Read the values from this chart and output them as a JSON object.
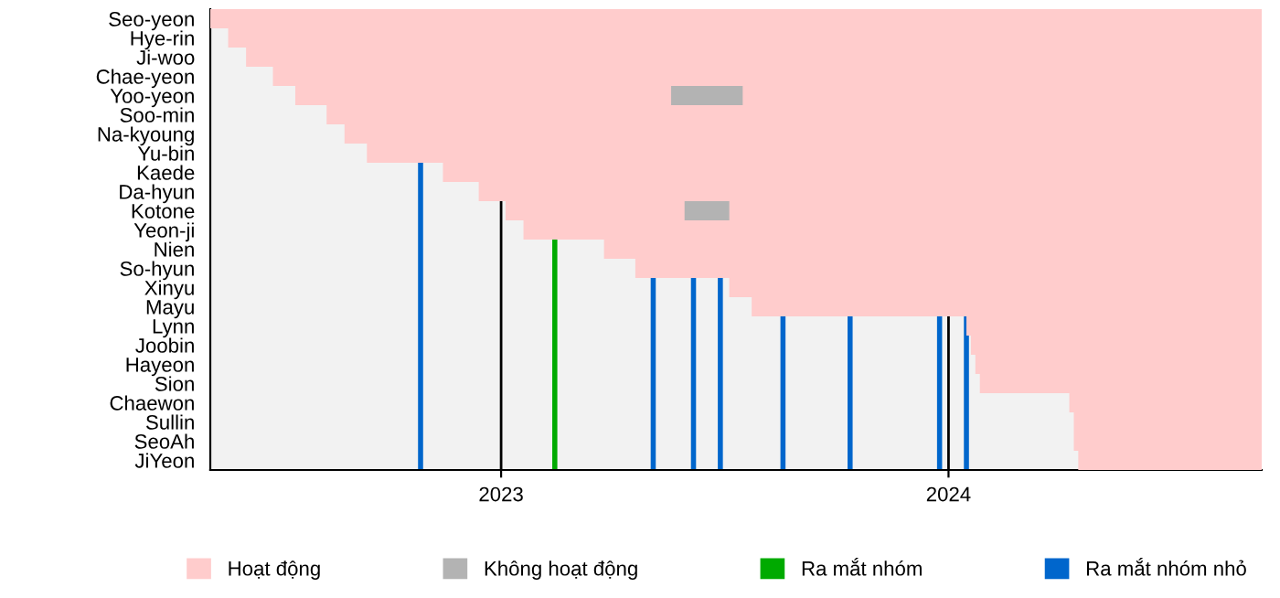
{
  "chart_data": {
    "type": "bar",
    "orientation": "horizontal",
    "categories": [
      "Seo-yeon",
      "Hye-rin",
      "Ji-woo",
      "Chae-yeon",
      "Yoo-yeon",
      "Soo-min",
      "Na-kyoung",
      "Yu-bin",
      "Kaede",
      "Da-hyun",
      "Kotone",
      "Yeon-ji",
      "Nien",
      "So-hyun",
      "Xinyu",
      "Mayu",
      "Lynn",
      "Joobin",
      "Hayeon",
      "Sion",
      "Chaewon",
      "Sullin",
      "SeoAh",
      "JiYeon"
    ],
    "series": [
      {
        "name": "Hoạt động",
        "color": "#ffcccc",
        "base": [
          2022.35,
          2022.39,
          2022.43,
          2022.49,
          2022.54,
          2022.61,
          2022.65,
          2022.7,
          2022.87,
          2022.95,
          2023.01,
          2023.05,
          2023.23,
          2023.3,
          2023.51,
          2023.56,
          2024.04,
          2024.05,
          2024.06,
          2024.07,
          2024.27,
          2024.28,
          2024.28,
          2024.29
        ],
        "values": [
          2.35,
          2.31,
          2.27,
          2.21,
          2.16,
          2.09,
          2.05,
          2.0,
          1.83,
          1.75,
          1.69,
          1.65,
          1.47,
          1.4,
          1.19,
          1.14,
          0.66,
          0.65,
          0.64,
          0.63,
          0.43,
          0.42,
          0.42,
          0.41
        ]
      },
      {
        "name": "Không hoạt động",
        "color": "#b3b3b3",
        "base": [
          null,
          null,
          null,
          null,
          2023.38,
          null,
          null,
          null,
          null,
          null,
          2023.41,
          null,
          null,
          null,
          null,
          null,
          null,
          null,
          null,
          null,
          null,
          null,
          null,
          null
        ],
        "values": [
          null,
          null,
          null,
          null,
          0.16,
          null,
          null,
          null,
          null,
          null,
          0.1,
          null,
          null,
          null,
          null,
          null,
          null,
          null,
          null,
          null,
          null,
          null,
          null,
          null
        ]
      }
    ],
    "xlim": [
      2022.35,
      2024.7
    ],
    "xticks": [
      2023,
      2024
    ],
    "grid": "x",
    "ref_lines": [
      {
        "axis": "x",
        "value": 2022.82,
        "label": "Ra mắt nhóm nhỏ",
        "color": "#0066cc"
      },
      {
        "axis": "x",
        "value": 2023.12,
        "label": "Ra mắt nhóm",
        "color": "#00aa00"
      },
      {
        "axis": "x",
        "value": 2023.34,
        "color": "#0066cc"
      },
      {
        "axis": "x",
        "value": 2023.43,
        "color": "#0066cc"
      },
      {
        "axis": "x",
        "value": 2023.49,
        "color": "#0066cc"
      },
      {
        "axis": "x",
        "value": 2023.63,
        "color": "#0066cc"
      },
      {
        "axis": "x",
        "value": 2023.78,
        "color": "#0066cc"
      },
      {
        "axis": "x",
        "value": 2023.98,
        "color": "#0066cc"
      },
      {
        "axis": "x",
        "value": 2024.04,
        "color": "#0066cc"
      }
    ],
    "legend": "bottom"
  }
}
